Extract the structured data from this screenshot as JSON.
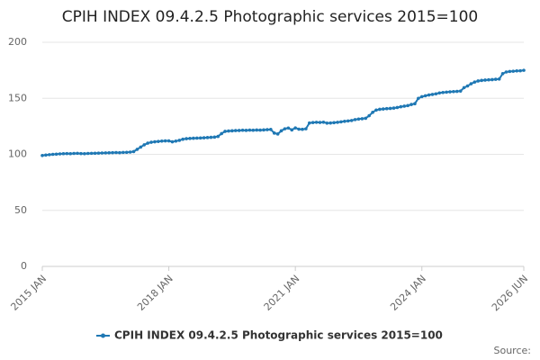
{
  "chart_data": {
    "type": "line",
    "title": "CPIH INDEX 09.4.2.5 Photographic services 2015=100",
    "source": "Source:",
    "categories": [
      "2015 JAN",
      null,
      null,
      null,
      null,
      null,
      null,
      null,
      null,
      null,
      null,
      null,
      null,
      null,
      null,
      null,
      null,
      null,
      null,
      null,
      null,
      null,
      null,
      null,
      null,
      null,
      null,
      null,
      null,
      null,
      null,
      null,
      null,
      null,
      null,
      null,
      "2018 JAN",
      null,
      null,
      null,
      null,
      null,
      null,
      null,
      null,
      null,
      null,
      null,
      null,
      null,
      null,
      null,
      null,
      null,
      null,
      null,
      null,
      null,
      null,
      null,
      null,
      null,
      null,
      null,
      null,
      null,
      null,
      null,
      null,
      null,
      null,
      null,
      "2021 JAN",
      null,
      null,
      null,
      null,
      null,
      null,
      null,
      null,
      null,
      null,
      null,
      null,
      null,
      null,
      null,
      null,
      null,
      null,
      null,
      null,
      null,
      null,
      null,
      null,
      null,
      null,
      null,
      null,
      null,
      null,
      null,
      null,
      null,
      null,
      null,
      "2024 JAN",
      null,
      null,
      null,
      null,
      null,
      null,
      null,
      null,
      null,
      null,
      null,
      null,
      null,
      null,
      null,
      null,
      null,
      null,
      null,
      null,
      null,
      null,
      null,
      null,
      null,
      null,
      null,
      null,
      "2026 JUN"
    ],
    "series": [
      {
        "name": "CPIH INDEX 09.4.2.5 Photographic services 2015=100",
        "color": "#1f78b4",
        "values": [
          99.0,
          99.4,
          99.7,
          100.0,
          100.2,
          100.4,
          100.6,
          100.7,
          100.6,
          100.8,
          100.9,
          100.7,
          100.6,
          100.8,
          100.9,
          101.0,
          101.1,
          101.2,
          101.3,
          101.4,
          101.5,
          101.6,
          101.5,
          101.7,
          101.8,
          102.0,
          102.5,
          104.5,
          106.5,
          108.5,
          110.0,
          110.8,
          111.2,
          111.5,
          111.8,
          112.0,
          112.0,
          111.2,
          111.8,
          112.5,
          113.5,
          114.0,
          114.2,
          114.4,
          114.5,
          114.6,
          114.8,
          115.0,
          115.2,
          115.4,
          116.0,
          118.5,
          120.5,
          120.8,
          121.0,
          121.2,
          121.3,
          121.5,
          121.4,
          121.6,
          121.5,
          121.7,
          121.6,
          121.8,
          122.0,
          122.2,
          119.0,
          118.2,
          121.0,
          122.8,
          123.5,
          121.8,
          123.6,
          122.5,
          122.3,
          122.8,
          128.0,
          128.4,
          128.6,
          128.5,
          128.7,
          127.9,
          128.0,
          128.3,
          128.6,
          129.0,
          129.5,
          129.8,
          130.2,
          131.0,
          131.5,
          131.8,
          132.2,
          134.5,
          137.5,
          139.5,
          140.2,
          140.5,
          140.8,
          141.0,
          141.3,
          141.8,
          142.5,
          143.0,
          143.5,
          144.5,
          145.2,
          150.0,
          151.5,
          152.3,
          153.0,
          153.5,
          154.0,
          154.8,
          155.2,
          155.5,
          155.8,
          156.0,
          156.2,
          156.5,
          159.5,
          161.0,
          163.0,
          164.5,
          165.5,
          166.0,
          166.3,
          166.5,
          166.7,
          167.0,
          167.2,
          172.0,
          173.5,
          174.0,
          174.2,
          174.5,
          174.6,
          175.0
        ]
      }
    ],
    "ylim": [
      0,
      200
    ],
    "yticks": [
      0,
      50,
      100,
      150,
      200
    ],
    "grid": true
  }
}
